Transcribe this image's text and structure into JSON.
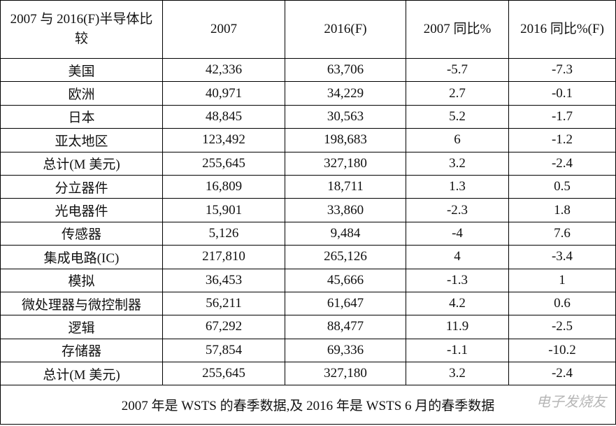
{
  "table": {
    "header": [
      "2007 与 2016(F)半导体比较",
      "2007",
      "2016(F)",
      "2007 同比%",
      "2016 同比%(F)"
    ],
    "rows": [
      [
        "美国",
        "42,336",
        "63,706",
        "-5.7",
        "-7.3"
      ],
      [
        "欧洲",
        "40,971",
        "34,229",
        "2.7",
        "-0.1"
      ],
      [
        "日本",
        "48,845",
        "30,563",
        "5.2",
        "-1.7"
      ],
      [
        "亚太地区",
        "123,492",
        "198,683",
        "6",
        "-1.2"
      ],
      [
        "总计(M 美元)",
        "255,645",
        "327,180",
        "3.2",
        "-2.4"
      ],
      [
        "分立器件",
        "16,809",
        "18,711",
        "1.3",
        "0.5"
      ],
      [
        "光电器件",
        "15,901",
        "33,860",
        "-2.3",
        "1.8"
      ],
      [
        "传感器",
        "5,126",
        "9,484",
        "-4",
        "7.6"
      ],
      [
        "集成电路(IC)",
        "217,810",
        "265,126",
        "4",
        "-3.4"
      ],
      [
        "模拟",
        "36,453",
        "45,666",
        "-1.3",
        "1"
      ],
      [
        "微处理器与微控制器",
        "56,211",
        "61,647",
        "4.2",
        "0.6"
      ],
      [
        "逻辑",
        "67,292",
        "88,477",
        "11.9",
        "-2.5"
      ],
      [
        "存储器",
        "57,854",
        "69,336",
        "-1.1",
        "-10.2"
      ],
      [
        "总计(M 美元)",
        "255,645",
        "327,180",
        "3.2",
        "-2.4"
      ]
    ],
    "footnote": "2007 年是 WSTS 的春季数据,及 2016 年是 WSTS 6 月的春季数据"
  },
  "watermark": "电子发烧友"
}
